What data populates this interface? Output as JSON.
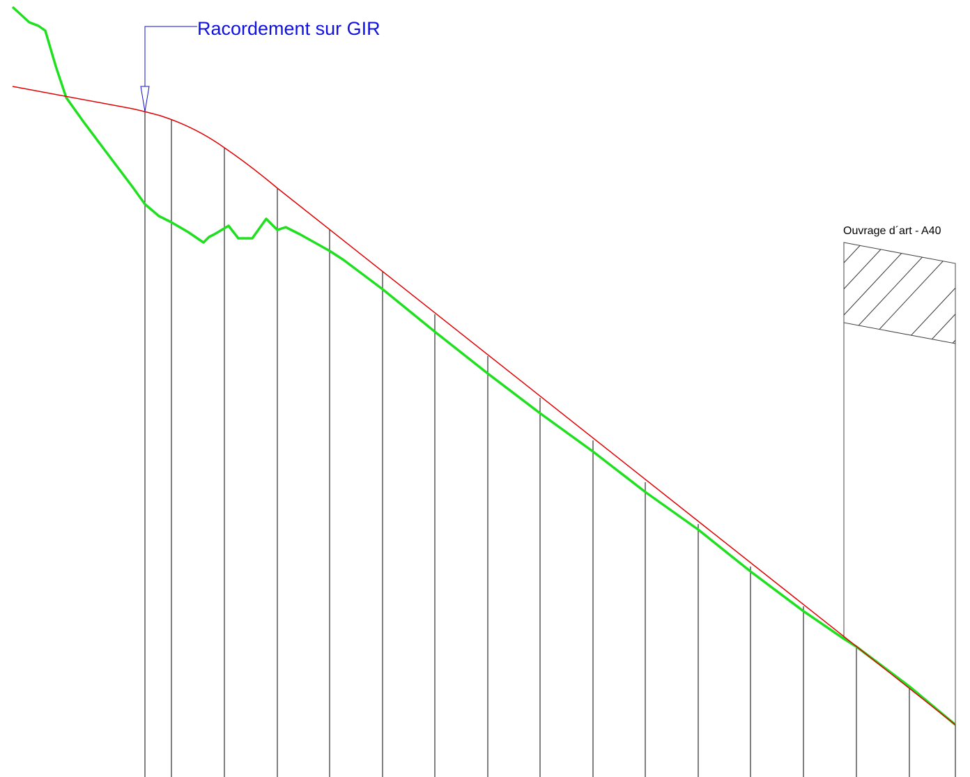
{
  "annotations": {
    "connection": "Racordement sur GIR",
    "structure": "Ouvrage d´art - A40"
  }
}
